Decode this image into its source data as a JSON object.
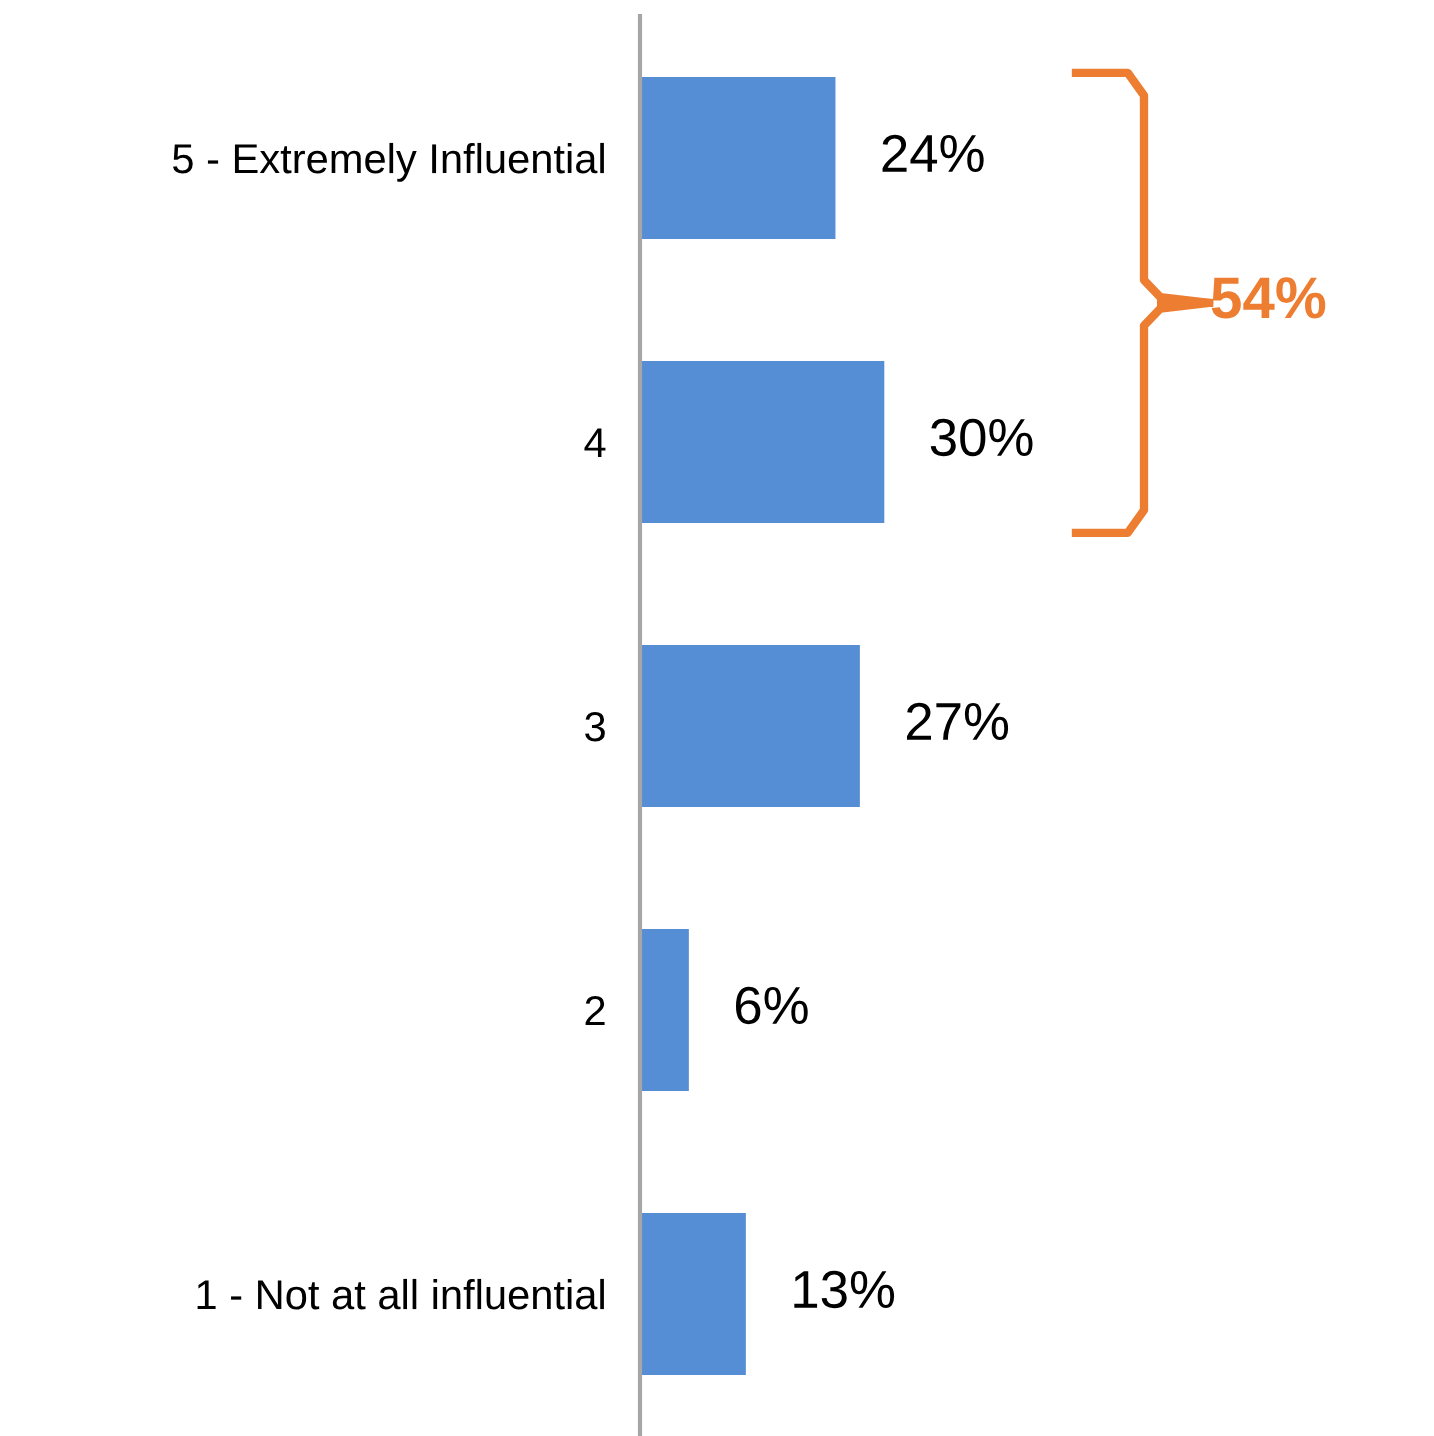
{
  "chart_data": {
    "type": "bar",
    "orientation": "horizontal",
    "categories": [
      "5 - Extremely Influential",
      "4",
      "3",
      "2",
      "1 - Not at all influential"
    ],
    "values": [
      24,
      30,
      27,
      6,
      13
    ],
    "value_labels": [
      "24%",
      "30%",
      "27%",
      "6%",
      "13%"
    ],
    "color": "#558ed5",
    "tick_labels": "y",
    "annotations": [
      "54%"
    ]
  }
}
